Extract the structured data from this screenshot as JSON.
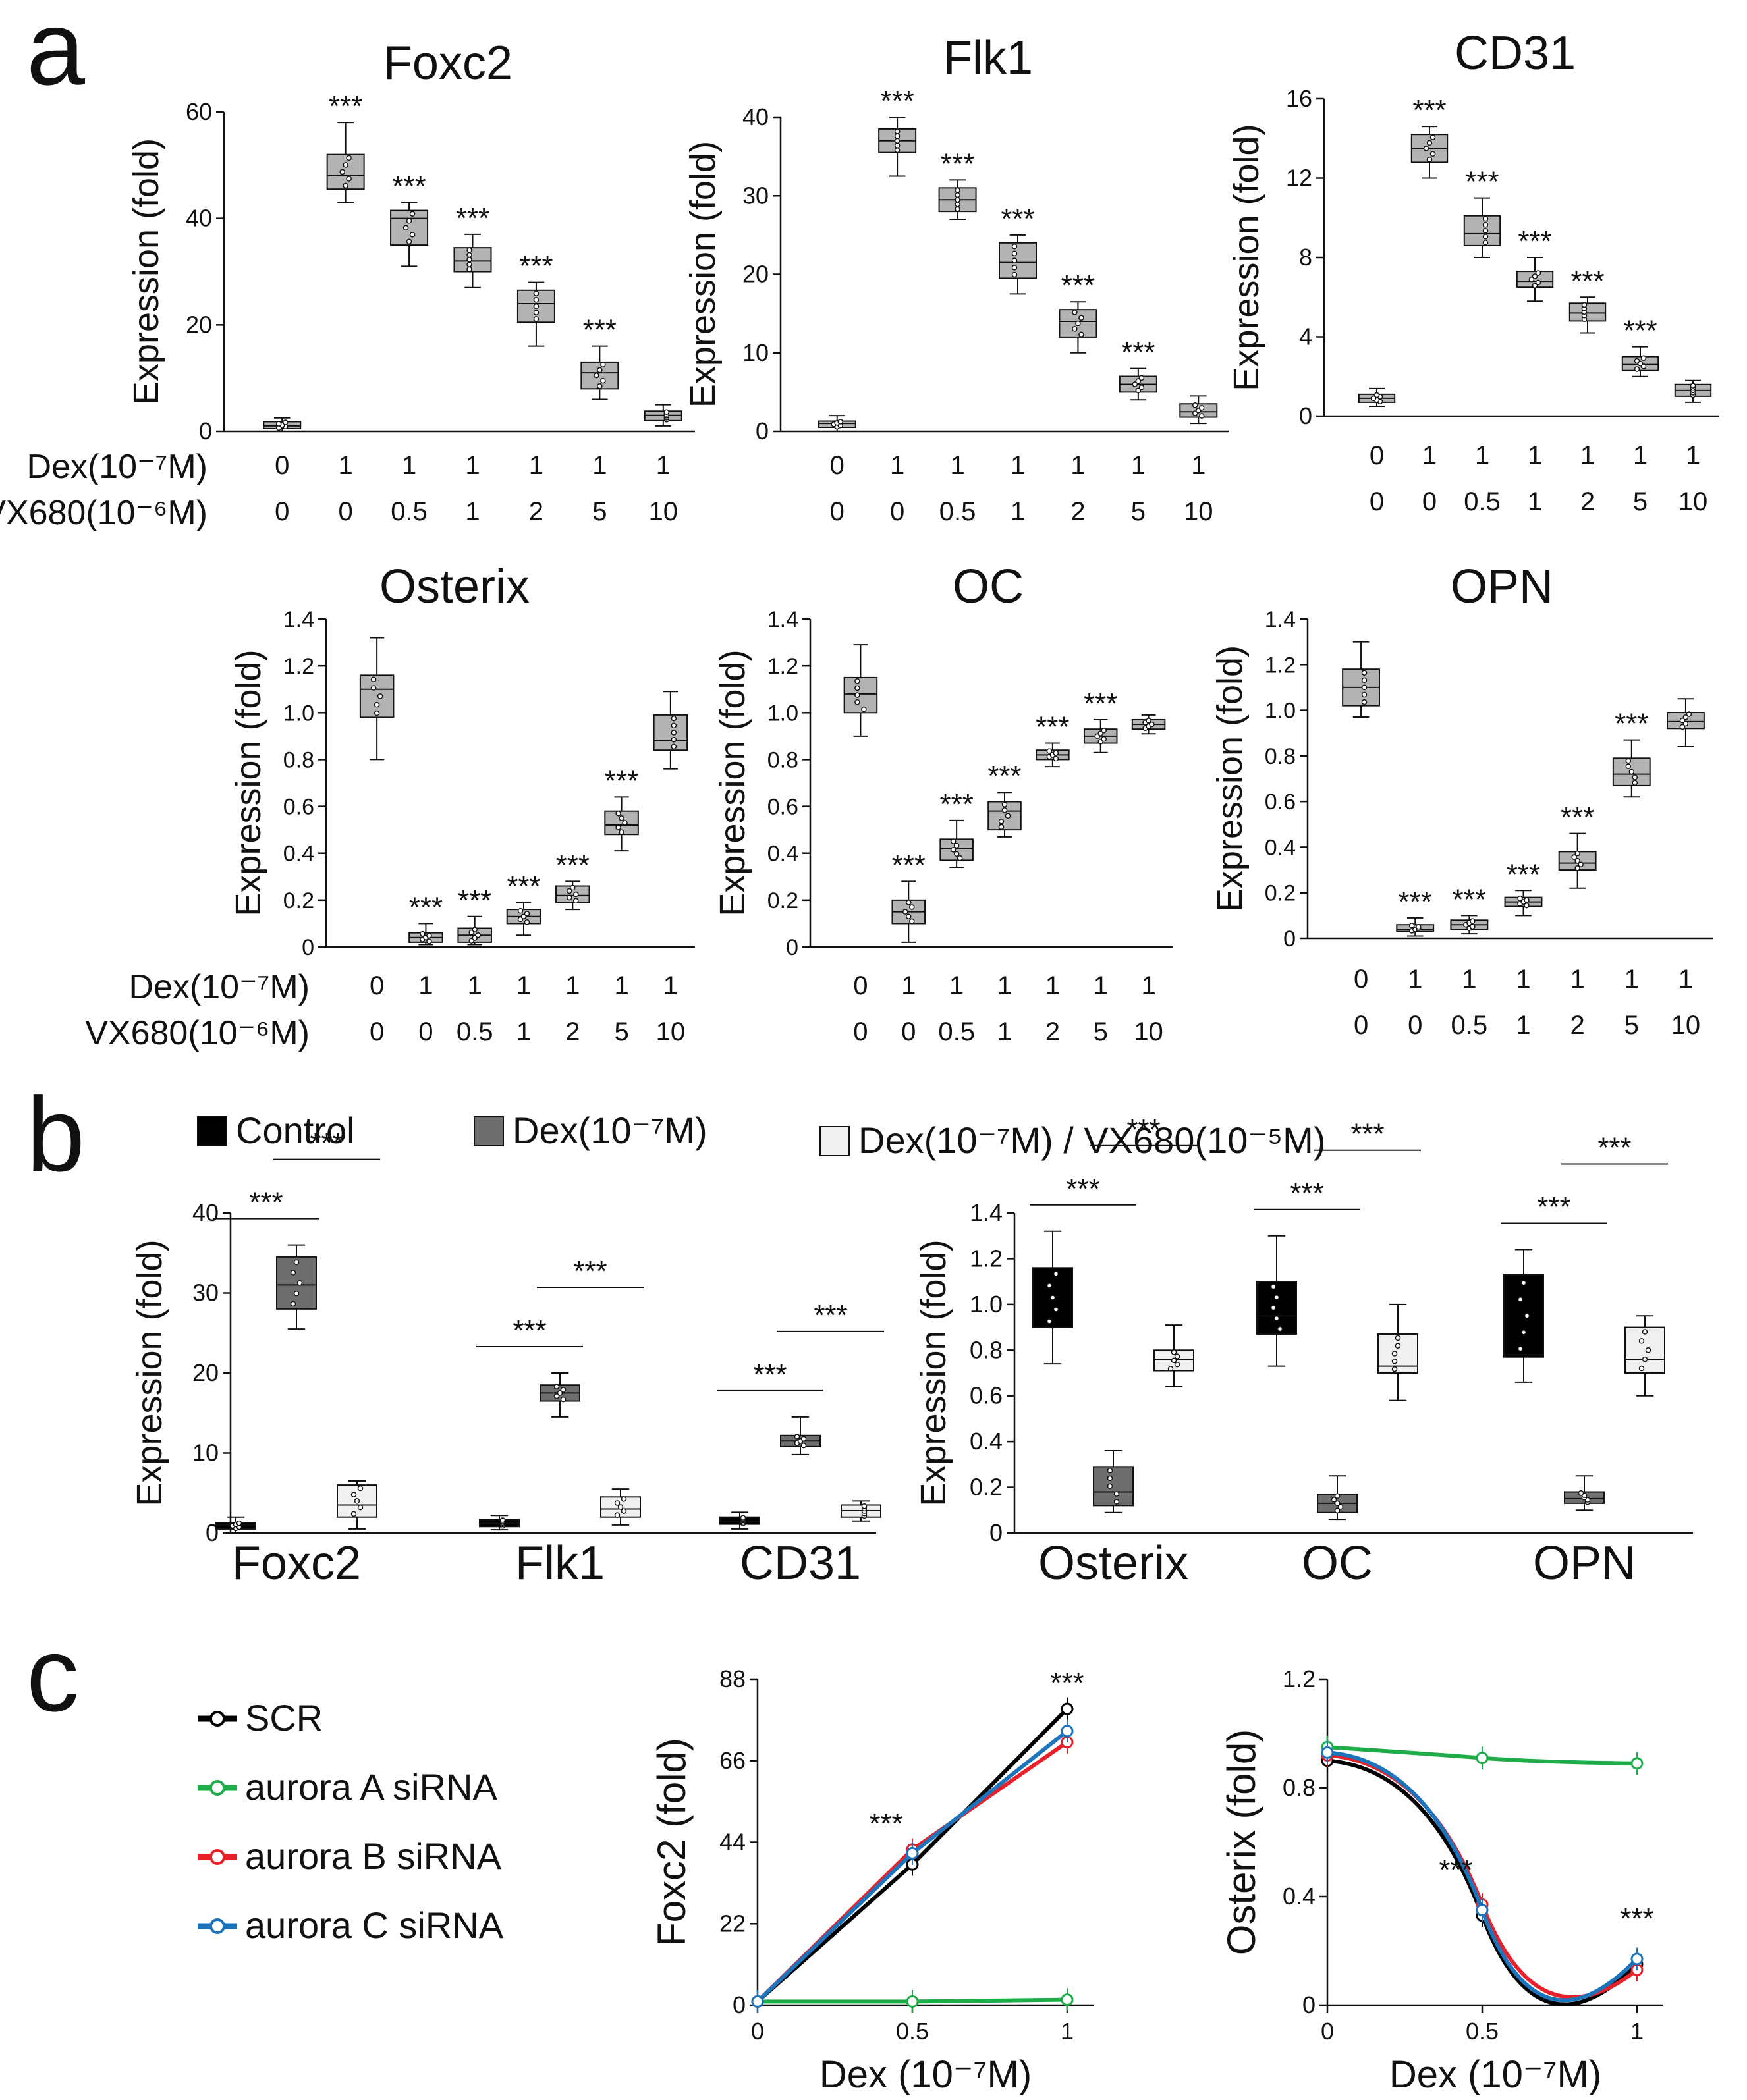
{
  "panel_labels": [
    "a",
    "b",
    "c"
  ],
  "sig": "***",
  "colors": {
    "ink": "#111111",
    "grey_box": "#b3b3b3",
    "dark_box": "#6e6e6e",
    "light_box": "#f0f0f0",
    "black_box": "#000000",
    "scr": "#000000",
    "aurora_a": "#1fad4a",
    "aurora_b": "#e8202a",
    "aurora_c": "#1c75bc"
  },
  "labels": {
    "ylabel": "Expression (fold)",
    "dex_row": "Dex(10⁻⁷M)",
    "vx_row": "VX680(10⁻⁶M)",
    "dex_vals": [
      "0",
      "1",
      "1",
      "1",
      "1",
      "1",
      "1"
    ],
    "vx_vals": [
      "0",
      "0",
      "0.5",
      "1",
      "2",
      "5",
      "10"
    ]
  },
  "chart_data": [
    {
      "id": "a_foxc2",
      "panel": "a",
      "type": "box",
      "title": "Foxc2",
      "ylabel": "Expression (fold)",
      "ylim": [
        0,
        60
      ],
      "yticks": [
        "0",
        "20",
        "40",
        "60"
      ],
      "show_row_titles": true,
      "groups": [
        {
          "med": 1,
          "q1": 0.5,
          "q3": 1.8,
          "lo": 0,
          "hi": 2.5,
          "sig": false
        },
        {
          "med": 48,
          "q1": 45.5,
          "q3": 52,
          "lo": 43,
          "hi": 58,
          "sig": true
        },
        {
          "med": 40,
          "q1": 35,
          "q3": 41.5,
          "lo": 31,
          "hi": 43,
          "sig": true
        },
        {
          "med": 32,
          "q1": 30,
          "q3": 34.5,
          "lo": 27,
          "hi": 37,
          "sig": true
        },
        {
          "med": 24,
          "q1": 20.5,
          "q3": 26.5,
          "lo": 16,
          "hi": 28,
          "sig": true
        },
        {
          "med": 11,
          "q1": 8,
          "q3": 13,
          "lo": 6,
          "hi": 16,
          "sig": true
        },
        {
          "med": 3,
          "q1": 2,
          "q3": 3.8,
          "lo": 1,
          "hi": 5,
          "sig": false
        }
      ]
    },
    {
      "id": "a_flk1",
      "panel": "a",
      "type": "box",
      "title": "Flk1",
      "ylabel": "Expression (fold)",
      "ylim": [
        0,
        40
      ],
      "yticks": [
        "0",
        "10",
        "20",
        "30",
        "40"
      ],
      "show_row_titles": false,
      "groups": [
        {
          "med": 1,
          "q1": 0.5,
          "q3": 1.3,
          "lo": 0,
          "hi": 2,
          "sig": false
        },
        {
          "med": 37,
          "q1": 35.5,
          "q3": 38.5,
          "lo": 32.5,
          "hi": 40,
          "sig": true
        },
        {
          "med": 29.5,
          "q1": 28,
          "q3": 31,
          "lo": 27,
          "hi": 32,
          "sig": true
        },
        {
          "med": 21.5,
          "q1": 19.5,
          "q3": 24,
          "lo": 17.5,
          "hi": 25,
          "sig": true
        },
        {
          "med": 14,
          "q1": 12,
          "q3": 15.5,
          "lo": 10,
          "hi": 16.5,
          "sig": true
        },
        {
          "med": 6,
          "q1": 5,
          "q3": 7,
          "lo": 4,
          "hi": 8,
          "sig": true
        },
        {
          "med": 2.5,
          "q1": 1.8,
          "q3": 3.5,
          "lo": 1,
          "hi": 4.5,
          "sig": false
        }
      ]
    },
    {
      "id": "a_cd31",
      "panel": "a",
      "type": "box",
      "title": "CD31",
      "ylabel": "Expression (fold)",
      "ylim": [
        0,
        16
      ],
      "yticks": [
        "0",
        "4",
        "8",
        "12",
        "16"
      ],
      "show_row_titles": false,
      "groups": [
        {
          "med": 0.9,
          "q1": 0.7,
          "q3": 1.1,
          "lo": 0.5,
          "hi": 1.4,
          "sig": false
        },
        {
          "med": 13.5,
          "q1": 12.8,
          "q3": 14.2,
          "lo": 12,
          "hi": 14.6,
          "sig": true
        },
        {
          "med": 9.2,
          "q1": 8.6,
          "q3": 10.1,
          "lo": 8,
          "hi": 11,
          "sig": true
        },
        {
          "med": 6.8,
          "q1": 6.5,
          "q3": 7.3,
          "lo": 5.8,
          "hi": 8,
          "sig": true
        },
        {
          "med": 5.2,
          "q1": 4.8,
          "q3": 5.7,
          "lo": 4.2,
          "hi": 6,
          "sig": true
        },
        {
          "med": 2.6,
          "q1": 2.3,
          "q3": 3.0,
          "lo": 2,
          "hi": 3.5,
          "sig": true
        },
        {
          "med": 1.3,
          "q1": 1.0,
          "q3": 1.6,
          "lo": 0.7,
          "hi": 1.8,
          "sig": false
        }
      ]
    },
    {
      "id": "a_osterix",
      "panel": "a",
      "type": "box",
      "title": "Osterix",
      "ylabel": "Expression (fold)",
      "ylim": [
        0,
        1.4
      ],
      "yticks": [
        "0",
        "0.2",
        "0.4",
        "0.6",
        "0.8",
        "1.0",
        "1.2",
        "1.4"
      ],
      "show_row_titles": true,
      "groups": [
        {
          "med": 1.1,
          "q1": 0.98,
          "q3": 1.16,
          "lo": 0.8,
          "hi": 1.32,
          "sig": false
        },
        {
          "med": 0.04,
          "q1": 0.02,
          "q3": 0.06,
          "lo": 0.01,
          "hi": 0.1,
          "sig": true
        },
        {
          "med": 0.05,
          "q1": 0.02,
          "q3": 0.08,
          "lo": 0.01,
          "hi": 0.13,
          "sig": true
        },
        {
          "med": 0.13,
          "q1": 0.1,
          "q3": 0.16,
          "lo": 0.05,
          "hi": 0.19,
          "sig": true
        },
        {
          "med": 0.22,
          "q1": 0.19,
          "q3": 0.26,
          "lo": 0.16,
          "hi": 0.28,
          "sig": true
        },
        {
          "med": 0.52,
          "q1": 0.48,
          "q3": 0.58,
          "lo": 0.41,
          "hi": 0.64,
          "sig": true
        },
        {
          "med": 0.88,
          "q1": 0.84,
          "q3": 0.99,
          "lo": 0.76,
          "hi": 1.09,
          "sig": false
        }
      ]
    },
    {
      "id": "a_oc",
      "panel": "a",
      "type": "box",
      "title": "OC",
      "ylabel": "Expression (fold)",
      "ylim": [
        0,
        1.4
      ],
      "yticks": [
        "0",
        "0.2",
        "0.4",
        "0.6",
        "0.8",
        "1.0",
        "1.2",
        "1.4"
      ],
      "show_row_titles": false,
      "groups": [
        {
          "med": 1.08,
          "q1": 1.0,
          "q3": 1.15,
          "lo": 0.9,
          "hi": 1.29,
          "sig": false
        },
        {
          "med": 0.15,
          "q1": 0.1,
          "q3": 0.2,
          "lo": 0.02,
          "hi": 0.28,
          "sig": true
        },
        {
          "med": 0.42,
          "q1": 0.37,
          "q3": 0.46,
          "lo": 0.34,
          "hi": 0.54,
          "sig": true
        },
        {
          "med": 0.58,
          "q1": 0.5,
          "q3": 0.62,
          "lo": 0.47,
          "hi": 0.66,
          "sig": true
        },
        {
          "med": 0.82,
          "q1": 0.8,
          "q3": 0.84,
          "lo": 0.77,
          "hi": 0.87,
          "sig": true
        },
        {
          "med": 0.9,
          "q1": 0.87,
          "q3": 0.93,
          "lo": 0.83,
          "hi": 0.97,
          "sig": true
        },
        {
          "med": 0.95,
          "q1": 0.93,
          "q3": 0.97,
          "lo": 0.91,
          "hi": 0.99,
          "sig": false
        }
      ]
    },
    {
      "id": "a_opn",
      "panel": "a",
      "type": "box",
      "title": "OPN",
      "ylabel": "Expression (fold)",
      "ylim": [
        0,
        1.4
      ],
      "yticks": [
        "0",
        "0.2",
        "0.4",
        "0.6",
        "0.8",
        "1.0",
        "1.2",
        "1.4"
      ],
      "show_row_titles": false,
      "groups": [
        {
          "med": 1.1,
          "q1": 1.02,
          "q3": 1.18,
          "lo": 0.97,
          "hi": 1.3,
          "sig": false
        },
        {
          "med": 0.04,
          "q1": 0.03,
          "q3": 0.06,
          "lo": 0.01,
          "hi": 0.09,
          "sig": true
        },
        {
          "med": 0.06,
          "q1": 0.04,
          "q3": 0.08,
          "lo": 0.02,
          "hi": 0.1,
          "sig": true
        },
        {
          "med": 0.16,
          "q1": 0.14,
          "q3": 0.18,
          "lo": 0.1,
          "hi": 0.21,
          "sig": true
        },
        {
          "med": 0.33,
          "q1": 0.3,
          "q3": 0.38,
          "lo": 0.22,
          "hi": 0.46,
          "sig": true
        },
        {
          "med": 0.72,
          "q1": 0.67,
          "q3": 0.79,
          "lo": 0.62,
          "hi": 0.87,
          "sig": true
        },
        {
          "med": 0.95,
          "q1": 0.92,
          "q3": 0.99,
          "lo": 0.84,
          "hi": 1.05,
          "sig": false
        }
      ]
    },
    {
      "id": "b_left",
      "panel": "b",
      "type": "box",
      "ylabel": "Expression (fold)",
      "ylim": [
        0,
        40
      ],
      "yticks": [
        "0",
        "10",
        "20",
        "30",
        "40"
      ],
      "legend": [
        {
          "label": "Control",
          "color": "#000000"
        },
        {
          "label": "Dex(10⁻⁷M)",
          "color": "#6e6e6e"
        },
        {
          "label": "Dex(10⁻⁷M) / VX680(10⁻⁵M)",
          "color": "#f0f0f0"
        }
      ],
      "genes": [
        {
          "name": "Foxc2",
          "boxes": [
            {
              "med": 1,
              "q1": 0.5,
              "q3": 1.3,
              "lo": 0,
              "hi": 2
            },
            {
              "med": 31,
              "q1": 28,
              "q3": 34.5,
              "lo": 25.5,
              "hi": 36
            },
            {
              "med": 3.5,
              "q1": 2,
              "q3": 6,
              "lo": 0.5,
              "hi": 6.5
            }
          ]
        },
        {
          "name": "Flk1",
          "boxes": [
            {
              "med": 1.2,
              "q1": 0.8,
              "q3": 1.7,
              "lo": 0.4,
              "hi": 2.2
            },
            {
              "med": 17.5,
              "q1": 16.5,
              "q3": 18.5,
              "lo": 14.5,
              "hi": 20
            },
            {
              "med": 3,
              "q1": 2,
              "q3": 4.5,
              "lo": 1,
              "hi": 5.5
            }
          ]
        },
        {
          "name": "CD31",
          "boxes": [
            {
              "med": 1.5,
              "q1": 1.1,
              "q3": 2,
              "lo": 0.5,
              "hi": 2.6
            },
            {
              "med": 11.5,
              "q1": 10.8,
              "q3": 12.2,
              "lo": 9.8,
              "hi": 14.5
            },
            {
              "med": 2.8,
              "q1": 2,
              "q3": 3.5,
              "lo": 1.5,
              "hi": 4
            }
          ]
        }
      ],
      "sig_pairs": [
        "***",
        "***"
      ]
    },
    {
      "id": "b_right",
      "panel": "b",
      "type": "box",
      "ylabel": "Expression (fold)",
      "ylim": [
        0,
        1.4
      ],
      "yticks": [
        "0",
        "0.2",
        "0.4",
        "0.6",
        "0.8",
        "1.0",
        "1.2",
        "1.4"
      ],
      "genes": [
        {
          "name": "Osterix",
          "boxes": [
            {
              "med": 0.9,
              "q1": 0.9,
              "q3": 1.16,
              "lo": 0.74,
              "hi": 1.32
            },
            {
              "med": 0.18,
              "q1": 0.12,
              "q3": 0.29,
              "lo": 0.09,
              "hi": 0.36
            },
            {
              "med": 0.76,
              "q1": 0.71,
              "q3": 0.8,
              "lo": 0.64,
              "hi": 0.91
            }
          ]
        },
        {
          "name": "OC",
          "boxes": [
            {
              "med": 0.95,
              "q1": 0.87,
              "q3": 1.1,
              "lo": 0.73,
              "hi": 1.3
            },
            {
              "med": 0.13,
              "q1": 0.09,
              "q3": 0.17,
              "lo": 0.06,
              "hi": 0.25
            },
            {
              "med": 0.73,
              "q1": 0.7,
              "q3": 0.87,
              "lo": 0.58,
              "hi": 1.0
            }
          ]
        },
        {
          "name": "OPN",
          "boxes": [
            {
              "med": 0.78,
              "q1": 0.77,
              "q3": 1.13,
              "lo": 0.66,
              "hi": 1.24
            },
            {
              "med": 0.15,
              "q1": 0.13,
              "q3": 0.18,
              "lo": 0.1,
              "hi": 0.25
            },
            {
              "med": 0.76,
              "q1": 0.7,
              "q3": 0.9,
              "lo": 0.6,
              "hi": 0.95
            }
          ]
        }
      ],
      "sig_pairs": [
        "***",
        "***"
      ]
    },
    {
      "id": "c_legend",
      "panel": "c",
      "type": "legend",
      "entries": [
        {
          "label": "SCR",
          "color": "#000000"
        },
        {
          "label": "aurora A siRNA",
          "color": "#1fad4a"
        },
        {
          "label": "aurora B siRNA",
          "color": "#e8202a"
        },
        {
          "label": "aurora C siRNA",
          "color": "#1c75bc"
        }
      ]
    },
    {
      "id": "c_foxc2",
      "panel": "c",
      "type": "line",
      "xlabel": "Dex (10⁻⁷M)",
      "ylabel": "Foxc2 (fold)",
      "x": [
        0,
        0.5,
        1
      ],
      "xticks": [
        "0",
        "0.5",
        "1"
      ],
      "ylim": [
        0,
        88
      ],
      "yticks": [
        "0",
        "22",
        "44",
        "66",
        "88"
      ],
      "series": [
        {
          "name": "SCR",
          "color": "#000000",
          "values": [
            1,
            38,
            80
          ]
        },
        {
          "name": "aurora A siRNA",
          "color": "#1fad4a",
          "values": [
            1,
            1,
            1.5
          ]
        },
        {
          "name": "aurora B siRNA",
          "color": "#e8202a",
          "values": [
            1,
            42,
            71
          ]
        },
        {
          "name": "aurora C siRNA",
          "color": "#1c75bc",
          "values": [
            1,
            41,
            74
          ]
        }
      ],
      "sig_at": [
        0.5,
        1
      ]
    },
    {
      "id": "c_osterix",
      "panel": "c",
      "type": "line",
      "xlabel": "Dex (10⁻⁷M)",
      "ylabel": "Osterix (fold)",
      "x": [
        0,
        0.5,
        1
      ],
      "xticks": [
        "0",
        "0.5",
        "1"
      ],
      "ylim": [
        0,
        1.2
      ],
      "yticks": [
        "0",
        "0.4",
        "0.8",
        "1.2"
      ],
      "series": [
        {
          "name": "SCR",
          "color": "#000000",
          "values": [
            0.9,
            0.33,
            0.15
          ]
        },
        {
          "name": "aurora A siRNA",
          "color": "#1fad4a",
          "values": [
            0.95,
            0.91,
            0.89
          ]
        },
        {
          "name": "aurora B siRNA",
          "color": "#e8202a",
          "values": [
            0.92,
            0.37,
            0.13
          ]
        },
        {
          "name": "aurora C siRNA",
          "color": "#1c75bc",
          "values": [
            0.93,
            0.35,
            0.17
          ]
        }
      ],
      "sig_at": [
        0.5,
        1
      ]
    }
  ]
}
